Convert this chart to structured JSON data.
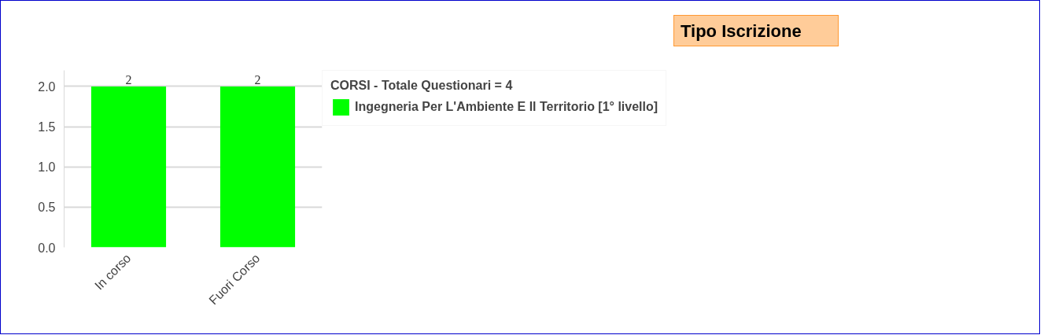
{
  "chart_data": {
    "type": "bar",
    "title": "Tipo Iscrizione",
    "legend_title": "CORSI - Totale Questionari = 4",
    "categories": [
      "In corso",
      "Fuori Corso"
    ],
    "series": [
      {
        "name": "Ingegneria Per L'Ambiente E Il Territorio [1° livello]",
        "color": "#00ff00",
        "values": [
          2,
          2
        ]
      }
    ],
    "ylim": [
      0,
      2.2
    ],
    "yticks": [
      {
        "value": 0,
        "label": "0.0"
      },
      {
        "value": 0.5,
        "label": "0.5"
      },
      {
        "value": 1,
        "label": "1.0"
      },
      {
        "value": 1.5,
        "label": "1.5"
      },
      {
        "value": 2,
        "label": "2.0"
      }
    ],
    "grid": "y",
    "legend": "top right",
    "data_labels": true
  }
}
